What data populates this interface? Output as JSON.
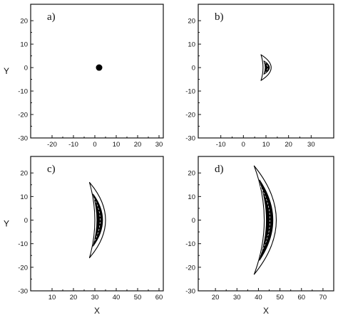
{
  "chart_data": [
    {
      "type": "scatter",
      "panel_label": "a)",
      "xlabel": "",
      "ylabel": "Y",
      "xlim": [
        -30,
        32
      ],
      "ylim": [
        -30,
        27
      ],
      "xticks": [
        -20,
        -10,
        0,
        10,
        20,
        30
      ],
      "yticks": [
        -30,
        -20,
        -10,
        0,
        10,
        20
      ],
      "shape": "dot",
      "center": [
        2,
        0
      ],
      "radius": 1.2
    },
    {
      "type": "scatter",
      "panel_label": "b)",
      "xlabel": "",
      "ylabel": "",
      "xlim": [
        -20,
        40
      ],
      "ylim": [
        -30,
        27
      ],
      "xticks": [
        -10,
        0,
        10,
        20,
        30
      ],
      "yticks": [
        -30,
        -20,
        -10,
        0,
        10,
        20
      ],
      "shape": "crescent",
      "outer": {
        "x_center": 10.5,
        "x_tip": 7.8,
        "half_height": 5.5,
        "width": 1.8
      },
      "inner": {
        "x_center": 10.6,
        "x_tip": 9.1,
        "half_height": 2.8,
        "width": 0.9
      }
    },
    {
      "type": "scatter",
      "panel_label": "c)",
      "xlabel": "X",
      "ylabel": "Y",
      "xlim": [
        0,
        62
      ],
      "ylim": [
        -30,
        27
      ],
      "xticks": [
        10,
        20,
        30,
        40,
        50,
        60
      ],
      "yticks": [
        -30,
        -20,
        -10,
        0,
        10,
        20
      ],
      "shape": "crescent",
      "outer": {
        "x_center": 32.5,
        "x_tip": 27.5,
        "half_height": 16,
        "width": 2.5
      },
      "inner": {
        "x_center": 32.3,
        "x_tip": 29.2,
        "half_height": 11,
        "width": 1.3
      }
    },
    {
      "type": "scatter",
      "panel_label": "d)",
      "xlabel": "X",
      "ylabel": "",
      "xlim": [
        12,
        75
      ],
      "ylim": [
        -30,
        27
      ],
      "xticks": [
        20,
        30,
        40,
        50,
        60,
        70
      ],
      "yticks": [
        -30,
        -20,
        -10,
        0,
        10,
        20
      ],
      "shape": "crescent",
      "outer": {
        "x_center": 45.5,
        "x_tip": 38,
        "half_height": 23,
        "width": 2.8
      },
      "inner": {
        "x_center": 45.2,
        "x_tip": 40.5,
        "half_height": 17,
        "width": 1.5
      }
    }
  ]
}
